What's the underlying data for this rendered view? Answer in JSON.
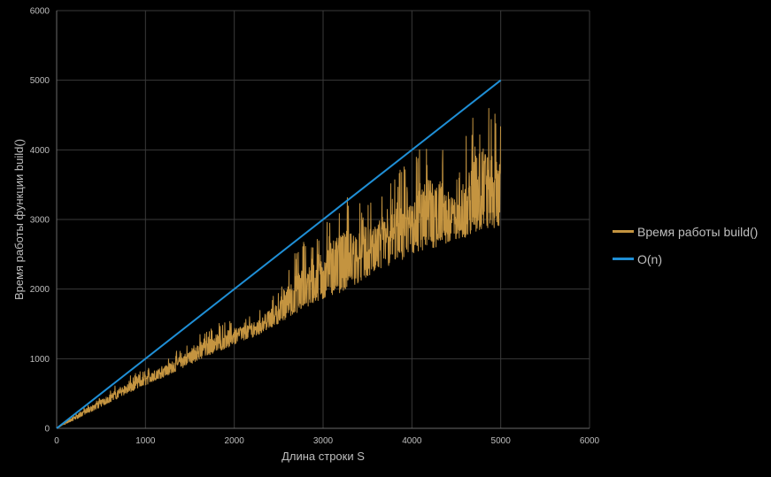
{
  "chart_data": {
    "type": "line",
    "title": "",
    "xlabel": "Длина строки S",
    "ylabel": "Время работы функции build()",
    "xlim": [
      0,
      6000
    ],
    "ylim": [
      0,
      6000
    ],
    "x_ticks": [
      "0",
      "1000",
      "2000",
      "3000",
      "4000",
      "5000",
      "6000"
    ],
    "y_ticks": [
      "0",
      "1000",
      "2000",
      "3000",
      "4000",
      "5000",
      "6000"
    ],
    "grid": true,
    "legend_position": "right",
    "background_color": "#000000",
    "series": [
      {
        "name": "Время работы build()",
        "color": "#c49440",
        "x": [
          0,
          250,
          500,
          750,
          1000,
          1250,
          1500,
          1750,
          2000,
          2250,
          2500,
          2750,
          3000,
          3250,
          3500,
          3750,
          4000,
          4250,
          4500,
          4750,
          5000
        ],
        "min": [
          0,
          150,
          310,
          470,
          620,
          760,
          920,
          1070,
          1200,
          1330,
          1510,
          1680,
          1850,
          1980,
          2170,
          2330,
          2450,
          2580,
          2700,
          2800,
          2900
        ],
        "max": [
          0,
          270,
          470,
          700,
          870,
          1030,
          1250,
          1500,
          1600,
          1680,
          2000,
          2750,
          3050,
          3400,
          3200,
          3600,
          3900,
          4400,
          3600,
          4950,
          4500
        ]
      },
      {
        "name": "O(n)",
        "color": "#1f8fd6",
        "x": [
          0,
          5000
        ],
        "y": [
          0,
          5000
        ]
      }
    ]
  }
}
